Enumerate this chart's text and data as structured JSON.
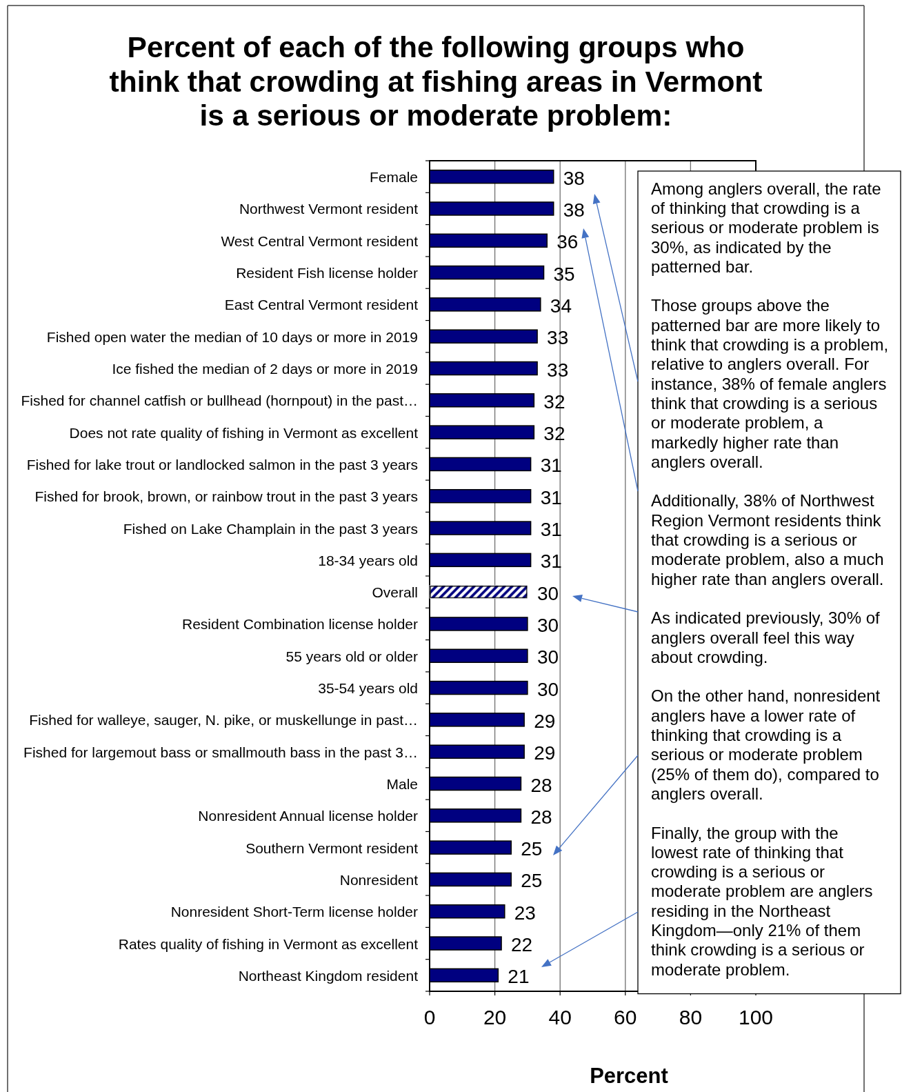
{
  "chart_data": {
    "type": "bar",
    "orientation": "horizontal",
    "title": "Percent of each of the following groups who think that crowding at fishing areas in Vermont is a serious or moderate problem:",
    "xlabel": "Percent",
    "categories": [
      "Female",
      "Northwest Vermont resident",
      "West Central Vermont resident",
      "Resident Fish license holder",
      "East Central Vermont resident",
      "Fished open water the median of 10 days or more in 2019",
      "Ice fished the median of 2 days or more in 2019",
      "Fished for channel catfish or bullhead (hornpout) in the past…",
      "Does not rate quality of fishing in Vermont as excellent",
      "Fished for lake trout or landlocked salmon in the past 3 years",
      "Fished for brook, brown, or rainbow trout in the past 3 years",
      "Fished on Lake Champlain in the past 3 years",
      "18-34 years old",
      "Overall",
      "Resident Combination license holder",
      "55 years old or older",
      "35-54 years old",
      "Fished for walleye, sauger, N. pike, or muskellunge in past…",
      "Fished for largemout bass or smallmouth bass in the past 3…",
      "Male",
      "Nonresident Annual license holder",
      "Southern Vermont resident",
      "Nonresident",
      "Nonresident Short-Term license holder",
      "Rates quality of fishing in Vermont as excellent",
      "Northeast Kingdom resident"
    ],
    "values": [
      38,
      38,
      36,
      35,
      34,
      33,
      33,
      32,
      32,
      31,
      31,
      31,
      31,
      30,
      30,
      30,
      30,
      29,
      29,
      28,
      28,
      25,
      25,
      23,
      22,
      21
    ],
    "color": "#000080",
    "colors": [
      "#000080",
      "#000080",
      "#000080",
      "#000080",
      "#000080",
      "#000080",
      "#000080",
      "#000080",
      "#000080",
      "#000080",
      "#000080",
      "#000080",
      "#000080",
      "#ffffff",
      "#000080",
      "#000080",
      "#000080",
      "#000080",
      "#000080",
      "#000080",
      "#000080",
      "#000080",
      "#000080",
      "#000080",
      "#000080",
      "#000080"
    ],
    "xlim": [
      0,
      100
    ],
    "xticks": [
      0,
      20,
      40,
      60,
      80,
      100
    ],
    "grid": "x",
    "data_labels": true,
    "annotations": [
      "Among anglers overall, the rate of thinking that crowding is a serious or moderate problem is 30%, as indicated by the patterned bar.",
      "Those groups above the patterned bar are more likely to think that crowding is a problem, relative to anglers overall. For instance, 38% of female anglers think that crowding is a serious or moderate problem, a markedly higher rate than anglers overall.",
      "Additionally, 38% of Northwest Region Vermont residents think that crowding is a serious or moderate problem, also a much higher rate than anglers overall.",
      "As indicated previously, 30% of anglers overall feel this way about crowding.",
      "On the other hand, nonresident anglers have a lower rate of thinking that crowding is a serious or moderate problem (25% of them do), compared to anglers overall.",
      "Finally, the group with the lowest rate of thinking that crowding is a serious or moderate problem are anglers residing in the Northeast Kingdom—only 21% of them think crowding is a serious or moderate problem."
    ]
  }
}
